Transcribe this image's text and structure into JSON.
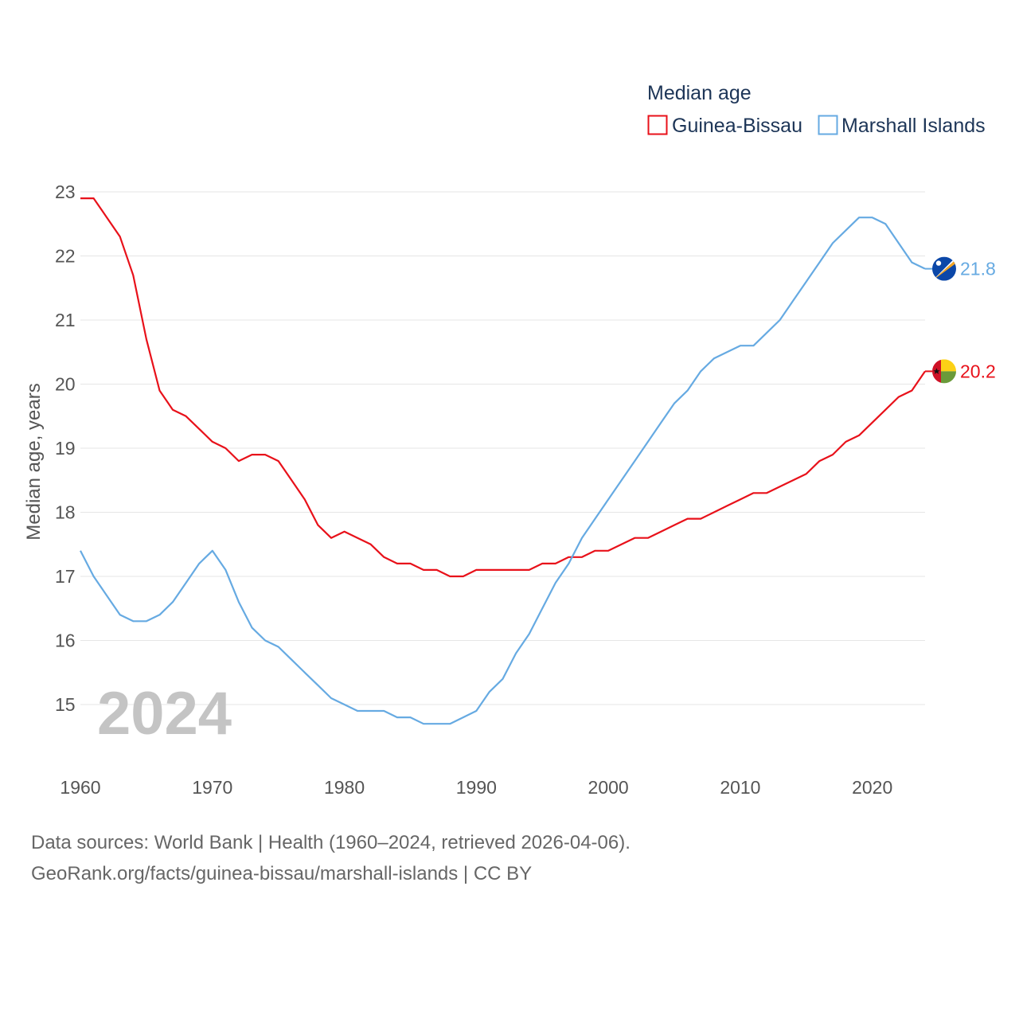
{
  "chart_data": {
    "type": "line",
    "title": "Median age",
    "xlabel": "",
    "ylabel": "Median age, years",
    "xlim": [
      1960,
      2024
    ],
    "ylim": [
      14.3,
      23.2
    ],
    "yticks": [
      15,
      16,
      17,
      18,
      19,
      20,
      21,
      22,
      23
    ],
    "xticks": [
      1960,
      1970,
      1980,
      1990,
      2000,
      2010,
      2020
    ],
    "grid": true,
    "legend_position": "top-right",
    "year_label": "2024",
    "x": [
      1960,
      1961,
      1962,
      1963,
      1964,
      1965,
      1966,
      1967,
      1968,
      1969,
      1970,
      1971,
      1972,
      1973,
      1974,
      1975,
      1976,
      1977,
      1978,
      1979,
      1980,
      1981,
      1982,
      1983,
      1984,
      1985,
      1986,
      1987,
      1988,
      1989,
      1990,
      1991,
      1992,
      1993,
      1994,
      1995,
      1996,
      1997,
      1998,
      1999,
      2000,
      2001,
      2002,
      2003,
      2004,
      2005,
      2006,
      2007,
      2008,
      2009,
      2010,
      2011,
      2012,
      2013,
      2014,
      2015,
      2016,
      2017,
      2018,
      2019,
      2020,
      2021,
      2022,
      2023,
      2024
    ],
    "series": [
      {
        "name": "Guinea-Bissau",
        "color": "#e8111a",
        "end_label": "20.2",
        "flag_icon": "guinea-bissau-flag-icon",
        "values": [
          22.9,
          22.9,
          22.6,
          22.3,
          21.7,
          20.7,
          19.9,
          19.6,
          19.5,
          19.3,
          19.1,
          19.0,
          18.8,
          18.9,
          18.9,
          18.8,
          18.5,
          18.2,
          17.8,
          17.6,
          17.7,
          17.6,
          17.5,
          17.3,
          17.2,
          17.2,
          17.1,
          17.1,
          17.0,
          17.0,
          17.1,
          17.1,
          17.1,
          17.1,
          17.1,
          17.2,
          17.2,
          17.3,
          17.3,
          17.4,
          17.4,
          17.5,
          17.6,
          17.6,
          17.7,
          17.8,
          17.9,
          17.9,
          18.0,
          18.1,
          18.2,
          18.3,
          18.3,
          18.4,
          18.5,
          18.6,
          18.8,
          18.9,
          19.1,
          19.2,
          19.4,
          19.6,
          19.8,
          19.9,
          20.2
        ]
      },
      {
        "name": "Marshall Islands",
        "color": "#66aae2",
        "end_label": "21.8",
        "flag_icon": "marshall-islands-flag-icon",
        "values": [
          17.4,
          17.0,
          16.7,
          16.4,
          16.3,
          16.3,
          16.4,
          16.6,
          16.9,
          17.2,
          17.4,
          17.1,
          16.6,
          16.2,
          16.0,
          15.9,
          15.7,
          15.5,
          15.3,
          15.1,
          15.0,
          14.9,
          14.9,
          14.9,
          14.8,
          14.8,
          14.7,
          14.7,
          14.7,
          14.8,
          14.9,
          15.2,
          15.4,
          15.8,
          16.1,
          16.5,
          16.9,
          17.2,
          17.6,
          17.9,
          18.2,
          18.5,
          18.8,
          19.1,
          19.4,
          19.7,
          19.9,
          20.2,
          20.4,
          20.5,
          20.6,
          20.6,
          20.8,
          21.0,
          21.3,
          21.6,
          21.9,
          22.2,
          22.4,
          22.6,
          22.6,
          22.5,
          22.2,
          21.9,
          21.8
        ]
      }
    ]
  },
  "source": {
    "line1": "Data sources: World Bank | Health (1960–2024, retrieved 2026-04-06).",
    "line2": "GeoRank.org/facts/guinea-bissau/marshall-islands | CC BY"
  }
}
